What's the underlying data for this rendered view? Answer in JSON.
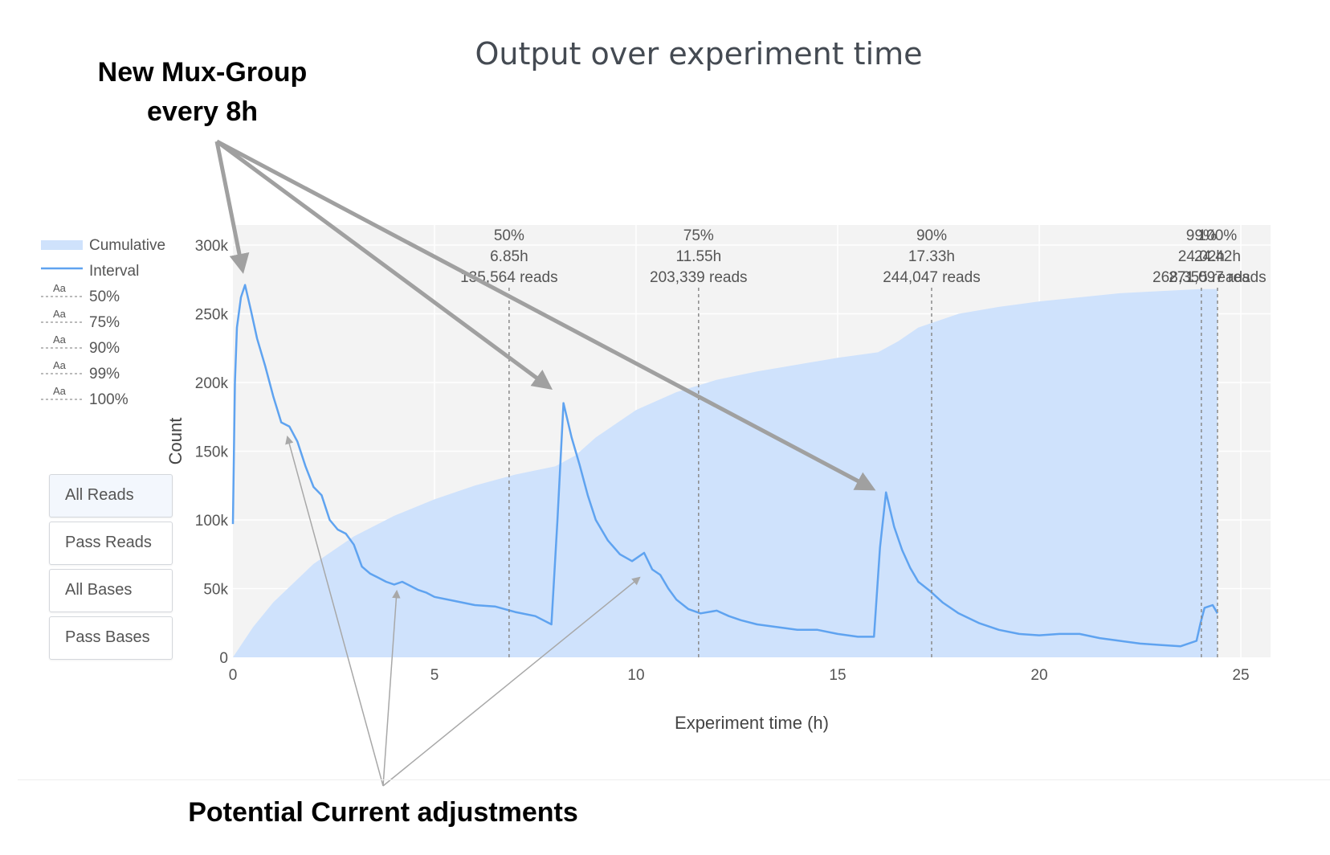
{
  "title": "Output over experiment time",
  "annotations": {
    "top_line1": "New Mux-Group",
    "top_line2": "every 8h",
    "bottom": "Potential Current adjustments"
  },
  "legend": {
    "cumulative": "Cumulative",
    "interval": "Interval",
    "marker_sample": "Aa",
    "markers": [
      "50%",
      "75%",
      "90%",
      "99%",
      "100%"
    ]
  },
  "buttons": [
    "All Reads",
    "Pass Reads",
    "All Bases",
    "Pass Bases"
  ],
  "colors": {
    "cumulative_fill": "#cfe2fc",
    "interval_line": "#5fa3f0",
    "arrow_dark": "#a0a0a0",
    "arrow_light": "#a8a8a8",
    "plot_bg": "#f3f3f3"
  },
  "chart_data": {
    "type": "area",
    "title": "Output over experiment time",
    "xlabel": "Experiment time (h)",
    "ylabel": "Count",
    "xlim": [
      0,
      25.7
    ],
    "ylim": [
      0,
      310000
    ],
    "x_ticks": [
      "0",
      "5",
      "10",
      "15",
      "20",
      "25"
    ],
    "y_ticks": [
      "0",
      "50k",
      "100k",
      "150k",
      "200k",
      "250k",
      "300k"
    ],
    "grid": true,
    "legend_position": "left",
    "series": [
      {
        "name": "Cumulative",
        "style": "filled-area",
        "x": [
          0,
          0.5,
          1,
          2,
          3,
          4,
          5,
          6,
          7,
          8,
          8.5,
          9,
          10,
          11,
          12,
          13,
          14,
          15,
          16,
          16.5,
          17,
          18,
          19,
          20,
          21,
          22,
          23,
          24,
          24.42
        ],
        "y": [
          0,
          22000,
          40000,
          68000,
          88000,
          103000,
          115000,
          125000,
          133000,
          139000,
          147000,
          160000,
          180000,
          193000,
          202000,
          208000,
          213000,
          218000,
          222000,
          230000,
          240000,
          250000,
          255000,
          259000,
          262000,
          265000,
          266500,
          268000,
          268000
        ]
      },
      {
        "name": "Interval",
        "style": "line",
        "x": [
          0,
          0.05,
          0.1,
          0.2,
          0.3,
          0.45,
          0.6,
          0.8,
          1.0,
          1.2,
          1.4,
          1.6,
          1.8,
          2.0,
          2.2,
          2.4,
          2.6,
          2.8,
          3.0,
          3.2,
          3.4,
          3.6,
          3.8,
          4.0,
          4.2,
          4.4,
          4.6,
          4.8,
          5.0,
          5.5,
          6.0,
          6.5,
          7.0,
          7.5,
          7.9,
          8.05,
          8.2,
          8.4,
          8.6,
          8.8,
          9.0,
          9.3,
          9.6,
          9.9,
          10.2,
          10.4,
          10.6,
          10.8,
          11.0,
          11.3,
          11.6,
          12.0,
          12.3,
          12.6,
          13.0,
          13.5,
          14.0,
          14.5,
          15.0,
          15.5,
          15.9,
          16.05,
          16.2,
          16.4,
          16.6,
          16.8,
          17.0,
          17.3,
          17.6,
          18.0,
          18.5,
          19.0,
          19.5,
          20.0,
          20.5,
          21.0,
          21.5,
          22.0,
          22.5,
          23.0,
          23.5,
          23.9,
          24.0,
          24.1,
          24.3,
          24.42
        ],
        "y": [
          97000,
          200000,
          240000,
          262000,
          271000,
          252000,
          232000,
          212000,
          190000,
          171000,
          168000,
          157000,
          139000,
          124000,
          118000,
          100000,
          93000,
          90000,
          82000,
          66000,
          61000,
          58000,
          55000,
          53000,
          55000,
          52000,
          49000,
          47000,
          44000,
          41000,
          38000,
          37000,
          33000,
          30000,
          24000,
          100000,
          185000,
          160000,
          140000,
          118000,
          100000,
          85000,
          75000,
          70000,
          76000,
          64000,
          60000,
          50000,
          42000,
          35000,
          32000,
          34000,
          30000,
          27000,
          24000,
          22000,
          20000,
          20000,
          17000,
          15000,
          15000,
          80000,
          120000,
          95000,
          78000,
          65000,
          55000,
          48000,
          40000,
          32000,
          25000,
          20000,
          17000,
          16000,
          17000,
          17000,
          14000,
          12000,
          10000,
          9000,
          8000,
          12000,
          25000,
          36000,
          38000,
          32000
        ]
      }
    ],
    "markers": [
      {
        "label": "50%",
        "time": "6.85h",
        "reads": "135,564 reads",
        "x": 6.85
      },
      {
        "label": "75%",
        "time": "11.55h",
        "reads": "203,339 reads",
        "x": 11.55
      },
      {
        "label": "90%",
        "time": "17.33h",
        "reads": "244,047 reads",
        "x": 17.33
      },
      {
        "label": "99%",
        "time": "24.02h",
        "reads": "268,355 reads",
        "x": 24.02
      },
      {
        "label": "100%",
        "time": "24.42h",
        "reads": "271,097 reads",
        "x": 24.42
      }
    ]
  }
}
